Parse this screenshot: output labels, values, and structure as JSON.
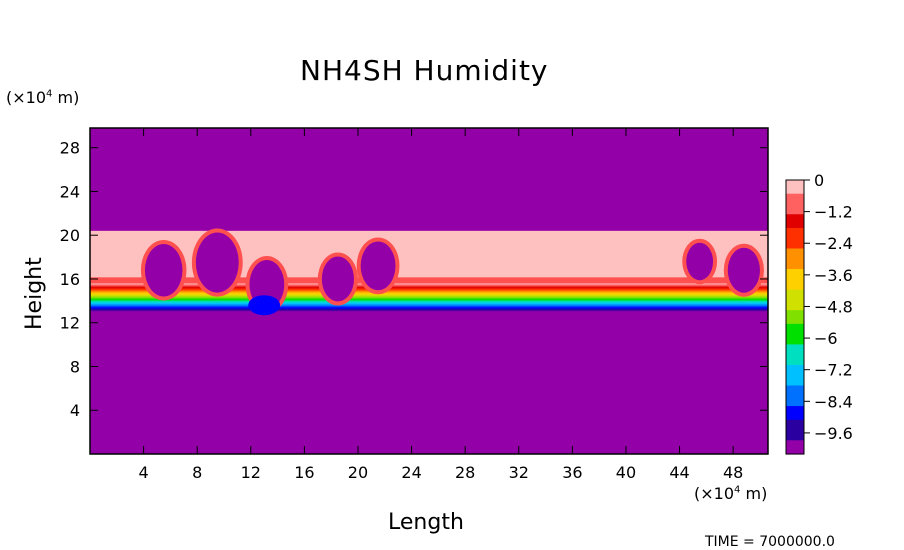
{
  "chart_data": {
    "type": "heatmap",
    "title": "NH4SH Humidity",
    "xlabel": "Length",
    "ylabel": "Height",
    "x_unit_prefix": "(×10",
    "x_unit_exp": "4",
    "x_unit_suffix": " m)",
    "y_unit_prefix": "(×10",
    "y_unit_exp": "4",
    "y_unit_suffix": " m)",
    "xlim": [
      0,
      50.6
    ],
    "ylim": [
      0,
      29.8
    ],
    "x_ticks": [
      4,
      8,
      12,
      16,
      20,
      24,
      28,
      32,
      36,
      40,
      44,
      48
    ],
    "y_ticks": [
      4,
      8,
      12,
      16,
      20,
      24,
      28
    ],
    "colorbar": {
      "min": -10.4,
      "max": 0,
      "labels": [
        "0",
        "−1.2",
        "−2.4",
        "−3.6",
        "−4.8",
        "−6",
        "−7.2",
        "−8.4",
        "−9.6"
      ],
      "label_values": [
        0,
        -1.2,
        -2.4,
        -3.6,
        -4.8,
        -6,
        -7.2,
        -8.4,
        -9.6
      ]
    },
    "field": {
      "background_value": -10,
      "moist_layer_top": 20.4,
      "moist_layer_bottom": 15.0,
      "moist_layer_value": -0.2,
      "gradient_bottom_height": 13.0,
      "description_points": [
        {
          "x": 4,
          "y_bottom": 14.6
        },
        {
          "x": 8,
          "y_bottom": 14.8
        },
        {
          "x": 13,
          "y_bottom": 12.8
        },
        {
          "x": 18,
          "y_bottom": 14.2
        },
        {
          "x": 24,
          "y_bottom": 14.4
        },
        {
          "x": 40,
          "y_bottom": 14.4
        },
        {
          "x": 48,
          "y_bottom": 13.6
        }
      ]
    },
    "colors": {
      "background": "#9400a8",
      "scale": [
        "#9400a8",
        "#2a00a0",
        "#0000ff",
        "#0070ff",
        "#00c0ff",
        "#00e0c0",
        "#00e000",
        "#80e000",
        "#d0e000",
        "#ffd000",
        "#ff9000",
        "#ff3000",
        "#e00000",
        "#ff6060",
        "#ffc0c0"
      ]
    }
  },
  "footer": {
    "text": "TIME = 7000000.0"
  }
}
